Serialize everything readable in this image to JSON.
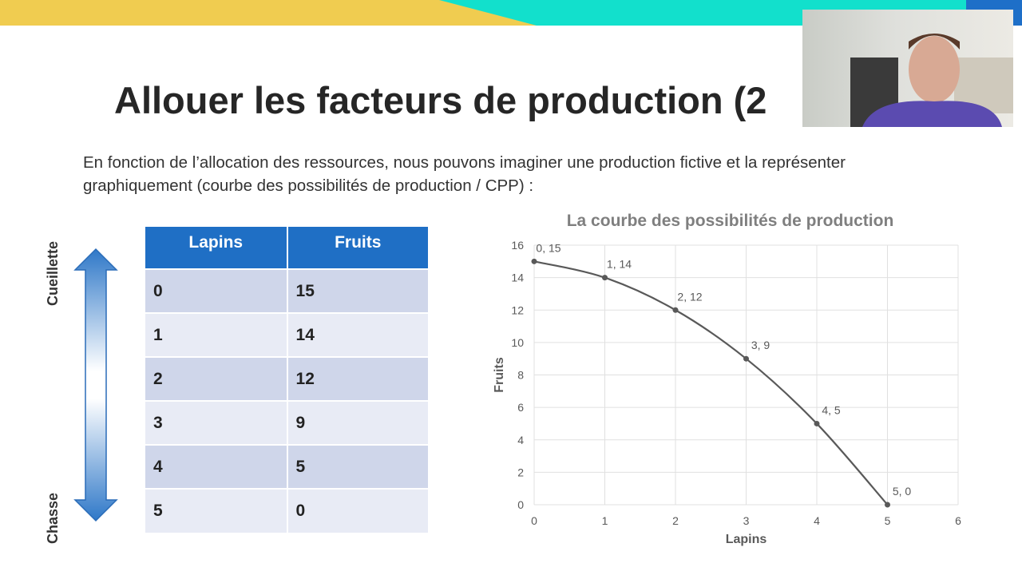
{
  "slide": {
    "title": "Allouer les facteurs de production (2",
    "intro": "En fonction de l’allocation des ressources, nous pouvons imaginer une production fictive et la représenter graphiquement (courbe des possibilités de production / CPP) :"
  },
  "arrow": {
    "top_label": "Cueillette",
    "bottom_label": "Chasse"
  },
  "table": {
    "headers": [
      "Lapins",
      "Fruits"
    ],
    "rows": [
      [
        "0",
        "15"
      ],
      [
        "1",
        "14"
      ],
      [
        "2",
        "12"
      ],
      [
        "3",
        "9"
      ],
      [
        "4",
        "5"
      ],
      [
        "5",
        "0"
      ]
    ]
  },
  "colors": {
    "band_yellow": "#f0cc50",
    "band_teal": "#12e0cc",
    "band_blue": "#1e6fc8",
    "header_blue": "#1f6fc5",
    "curve": "#595959"
  },
  "chart_data": {
    "type": "line",
    "title": "La courbe des possibilités de production",
    "xlabel": "Lapins",
    "ylabel": "Fruits",
    "xlim": [
      0,
      6
    ],
    "ylim": [
      0,
      16
    ],
    "xticks": [
      0,
      1,
      2,
      3,
      4,
      5,
      6
    ],
    "yticks": [
      0,
      2,
      4,
      6,
      8,
      10,
      12,
      14,
      16
    ],
    "grid": true,
    "smooth": true,
    "x": [
      0,
      1,
      2,
      3,
      4,
      5
    ],
    "y": [
      15,
      14,
      12,
      9,
      5,
      0
    ],
    "data_labels": [
      "0, 15",
      "1, 14",
      "2, 12",
      "3, 9",
      "4, 5",
      "5, 0"
    ]
  },
  "webcam": {
    "icon": "webcam-video-feed"
  }
}
